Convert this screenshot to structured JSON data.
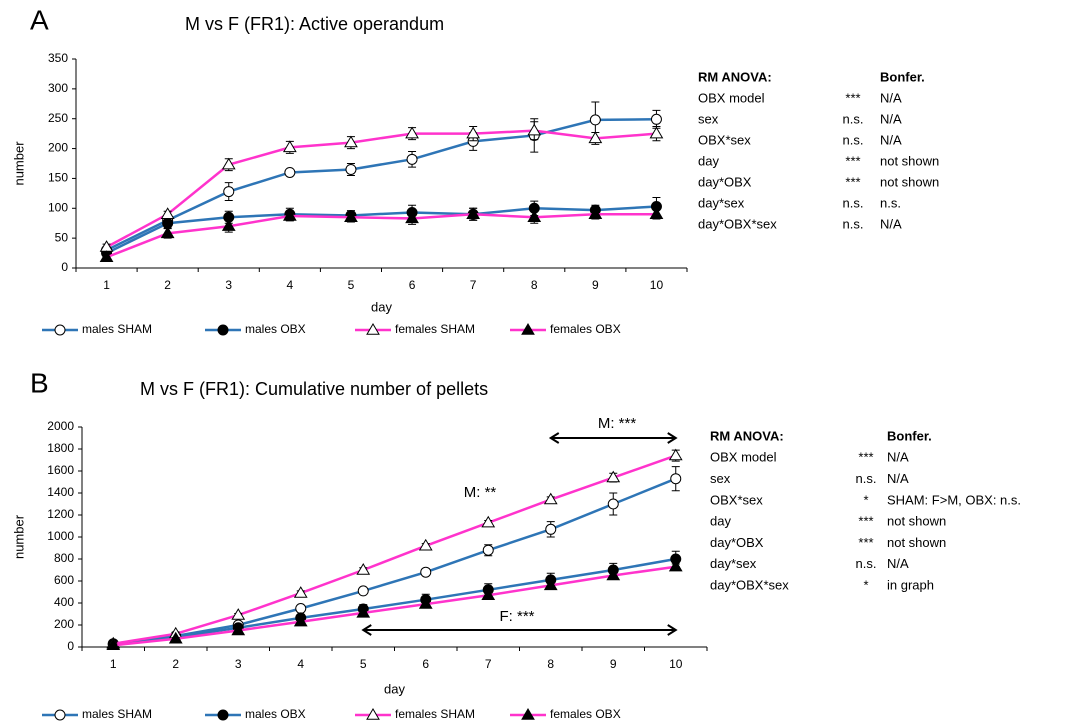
{
  "chart_data": [
    {
      "type": "line",
      "panel_label": "A",
      "title": "M vs F (FR1): Active operandum",
      "x_label": "day",
      "y_label": "number",
      "categories": [
        "1",
        "2",
        "3",
        "4",
        "5",
        "6",
        "7",
        "8",
        "9",
        "10"
      ],
      "ylim": [
        0,
        350
      ],
      "yticks": [
        0,
        50,
        100,
        150,
        200,
        250,
        300,
        350
      ],
      "grid": false,
      "series": [
        {
          "name": "males SHAM",
          "color": "#2e75b6",
          "marker": "circle-open",
          "values": [
            30,
            80,
            128,
            160,
            165,
            182,
            212,
            222,
            248,
            249
          ],
          "errors": [
            5,
            8,
            15,
            5,
            10,
            13,
            15,
            28,
            30,
            15
          ]
        },
        {
          "name": "males OBX",
          "color": "#2e75b6",
          "marker": "circle-filled",
          "values": [
            25,
            75,
            85,
            90,
            88,
            93,
            90,
            100,
            97,
            103
          ],
          "errors": [
            5,
            8,
            10,
            10,
            8,
            12,
            10,
            12,
            8,
            15
          ]
        },
        {
          "name": "females SHAM",
          "color": "#ff33cc",
          "marker": "triangle-open",
          "values": [
            35,
            90,
            173,
            202,
            210,
            225,
            225,
            230,
            217,
            225
          ],
          "errors": [
            5,
            5,
            10,
            10,
            10,
            10,
            12,
            15,
            10,
            12
          ]
        },
        {
          "name": "females OBX",
          "color": "#ff33cc",
          "marker": "triangle-filled",
          "values": [
            18,
            58,
            70,
            87,
            85,
            83,
            90,
            85,
            90,
            90
          ],
          "errors": [
            5,
            8,
            10,
            8,
            8,
            10,
            10,
            10,
            8,
            8
          ]
        }
      ],
      "stats_table": {
        "header": [
          "RM ANOVA:",
          "Bonfer."
        ],
        "rows": [
          [
            "OBX model",
            "***",
            "N/A"
          ],
          [
            "sex",
            "n.s.",
            "N/A"
          ],
          [
            "OBX*sex",
            "n.s.",
            "N/A"
          ],
          [
            "day",
            "***",
            "not shown"
          ],
          [
            "day*OBX",
            "***",
            "not shown"
          ],
          [
            "day*sex",
            "n.s.",
            "n.s."
          ],
          [
            "day*OBX*sex",
            "n.s.",
            "N/A"
          ]
        ]
      }
    },
    {
      "type": "line",
      "panel_label": "B",
      "title": "M vs F (FR1): Cumulative number of pellets",
      "x_label": "day",
      "y_label": "number",
      "categories": [
        "1",
        "2",
        "3",
        "4",
        "5",
        "6",
        "7",
        "8",
        "9",
        "10"
      ],
      "ylim": [
        0,
        2000
      ],
      "yticks": [
        0,
        200,
        400,
        600,
        800,
        1000,
        1200,
        1400,
        1600,
        1800,
        2000
      ],
      "grid": false,
      "series": [
        {
          "name": "males SHAM",
          "color": "#2e75b6",
          "marker": "circle-open",
          "values": [
            30,
            100,
            200,
            350,
            510,
            680,
            880,
            1070,
            1300,
            1530
          ],
          "errors": [
            10,
            15,
            20,
            20,
            25,
            30,
            50,
            70,
            100,
            110
          ]
        },
        {
          "name": "males OBX",
          "color": "#2e75b6",
          "marker": "circle-filled",
          "values": [
            25,
            90,
            175,
            265,
            345,
            430,
            520,
            610,
            700,
            800
          ],
          "errors": [
            10,
            15,
            20,
            30,
            40,
            50,
            55,
            60,
            60,
            70
          ]
        },
        {
          "name": "females SHAM",
          "color": "#ff33cc",
          "marker": "triangle-open",
          "values": [
            30,
            120,
            290,
            490,
            700,
            920,
            1130,
            1340,
            1540,
            1740
          ],
          "errors": [
            10,
            15,
            15,
            20,
            20,
            20,
            20,
            25,
            40,
            50
          ]
        },
        {
          "name": "females OBX",
          "color": "#ff33cc",
          "marker": "triangle-filled",
          "values": [
            15,
            75,
            150,
            230,
            310,
            390,
            470,
            560,
            650,
            730
          ],
          "errors": [
            8,
            10,
            15,
            15,
            15,
            15,
            20,
            20,
            20,
            25
          ]
        }
      ],
      "annotations": [
        {
          "text": "M: ***",
          "x_range": [
            8,
            10
          ]
        },
        {
          "text": "M: **"
        },
        {
          "text": "F: ***",
          "x_range": [
            5,
            10
          ]
        }
      ],
      "stats_table": {
        "header": [
          "RM ANOVA:",
          "Bonfer."
        ],
        "rows": [
          [
            "OBX model",
            "***",
            "N/A"
          ],
          [
            "sex",
            "n.s.",
            "N/A"
          ],
          [
            "OBX*sex",
            "*",
            "SHAM: F>M, OBX: n.s."
          ],
          [
            "day",
            "***",
            "not shown"
          ],
          [
            "day*OBX",
            "***",
            "not shown"
          ],
          [
            "day*sex",
            "n.s.",
            "N/A"
          ],
          [
            "day*OBX*sex",
            "*",
            "in graph"
          ]
        ]
      }
    }
  ]
}
